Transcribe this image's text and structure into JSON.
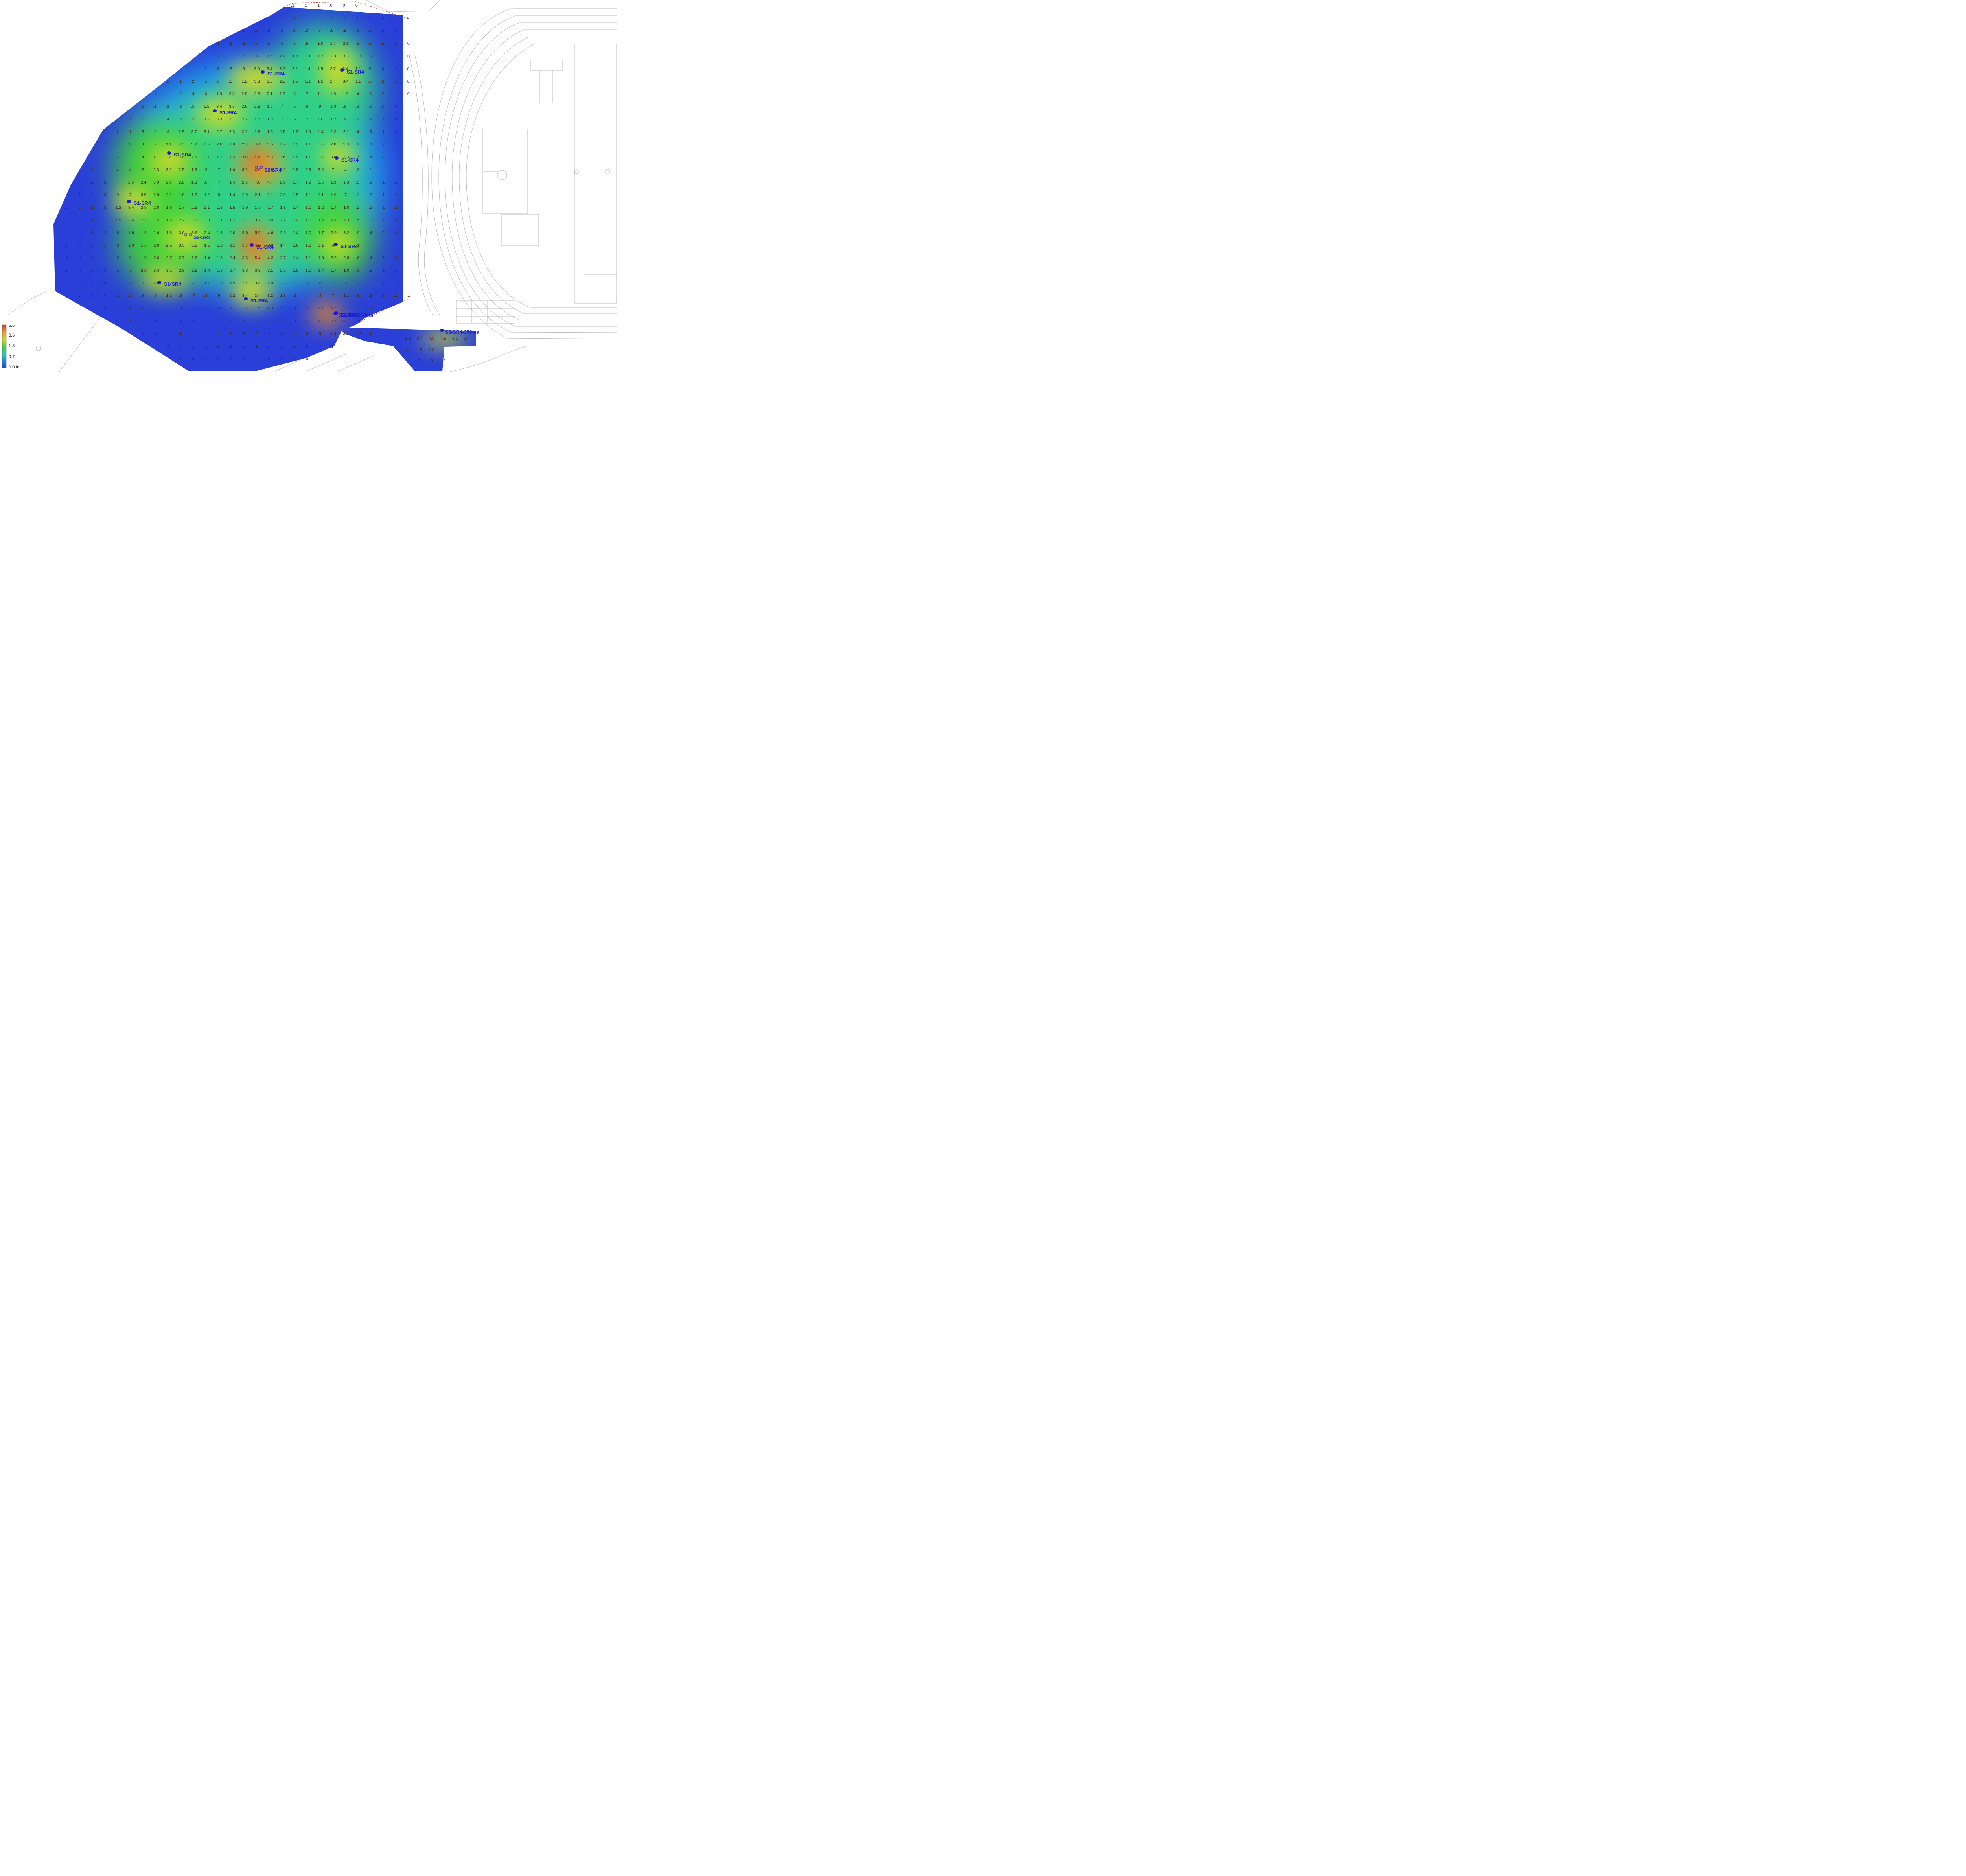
{
  "legend": {
    "ticks": [
      "6.6",
      "3.6",
      "1.8",
      "0.7",
      "0.0 fc"
    ]
  },
  "luminaire_label": "S1-SR4",
  "luminaire_labels": [
    "S1-SR4",
    "S1-SR4",
    "S1-SR4",
    "S1-SR4",
    "S2-SR4",
    "S1-SR4",
    "S1-SR4",
    "S2-SR4",
    "S1-SR4",
    "S1-SR4",
    "S1-SR4",
    "S1-SR4",
    "S1-SR4",
    "S3-SR4-350ma",
    "S3-SR4-350ma"
  ],
  "grid_rows": [
    ".1 .1 .1 .0 .0 .0",
    ".1 .1 .1 .1 .2 .2 .2 .1 .0 .0 .0 .0",
    ".1 .2 .2 .2 .1 .3 .6 .9 .8 .2 .1 .1 .0",
    ".1 .1 .3 .5 .5 .4 .6 .5 1.0 1.7 2.1 .6 .3 .2 .1 .0",
    ".1 .2 .3 .5 .6 1.4 2.4 1.8 1.1 1.3 2.3 3.3 1.7 .6 .2 .1 .0",
    ".1 .2 .3 .3 .5 2.0 3.4 3.2 2.2 1.4 1.5 2.7 3.4 1.1 .5 .3 .1 .0",
    ".1 .1 .2 .5 .6 .5 1.2 3.3 3.0 2.5 1.5 1.1 1.5 2.4 3.4 1.5 .6 .2 .1 .0",
    ".1 .1 .2 .4 .6 1.3 2.3 2.8 2.8 2.1 1.3 .8 .7 1.1 1.8 1.9 .4 .3 .2 .1 .0",
    ".1 .1 .2 .3 .5 1.5 3.4 3.5 2.9 2.3 1.5 .7 .5 .6 .9 1.0 .8 .2 .2 .1 .0",
    ".1 .1 .3 .4 .4 .9 3.2 3.3 3.1 2.2 1.7 1.0 .7 .6 .7 1.0 1.2 .9 .2 .2 .1 .0",
    ".1 .1 .3 .5 .9 1.5 2.7 3.1 2.7 2.3 2.2 1.8 1.6 1.5 1.2 1.0 1.4 2.2 2.1 .4 .3 .1 .0",
    ".1 .1 .2 .4 .9 1.1 3.5 3.2 2.6 2.0 1.9 2.5 3.4 3.5 2.7 1.6 1.1 1.6 2.8 3.3 .9 .4 .2 .1",
    ".1 .2 .3 .4 1.1 3.4 3.6 2.5 1.7 1.2 1.5 3.0 4.6 5.3 3.6 1.8 1.1 1.8 3.0 3.3 .7 .4 .2 .1",
    ".1 .1 .4 .4 .5 2.3 3.2 2.5 1.6 .9 .7 1.4 3.1 4.6 1.8 1.2 1.8 2.8 2.9 .7 .4 .2 .1",
    ".1 .3 .4 1.0 2.4 3.0 2.8 2.0 1.3 .8 .7 1.4 2.6 4.0 4.4 2.9 1.7 1.2 1.5 1.9 1.3 .3 .2 .1 .1",
    ".1 .2 .4 .9 .7 3.5 2.9 2.2 1.8 1.5 1.2 .9 1.4 2.0 2.1 2.1 2.0 1.5 1.1 1.1 1.0 .7 .2 .2 .1 .1",
    ".0 .1 .1 .3 1.2 3.4 2.9 2.0 1.6 1.7 2.2 2.1 1.3 1.5 1.9 1.7 1.7 1.8 1.4 1.0 1.2 1.4 1.0 .2 .2 .1 .1",
    ".0 .1 .1 .2 1.5 2.6 2.2 1.5 1.5 2.2 3.1 3.3 1.1 1.7 2.7 3.2 3.0 2.2 1.4 1.0 1.5 2.4 2.3 .5 .3 .1 .1",
    ".0 .0 .1 .2 .8 1.6 1.6 1.4 1.8 3.0 3.6 2.4 1.3 2.0 3.6 5.5 4.6 2.9 1.4 1.0 1.7 2.9 3.2 .9 .4 .2 .1",
    ".0 .0 .0 .1 .3 1.0 1.6 2.0 2.5 3.5 3.2 1.5 1.3 2.1 3.7 4.2 3.0 1.4 1.0 1.8 3.1 .4 .1 .1",
    ".0 .0 .0 .1 .2 .8 1.9 2.6 2.7 2.7 1.6 1.4 1.5 2.4 3.6 5.4 4.2 2.7 1.4 1.1 1.8 2.9 2.3 .6 .4 .1 .1",
    ".0 .0 .0 .0 .1 .7 2.0 3.4 3.1 2.8 1.9 1.4 1.8 2.7 3.3 3.3 3.1 2.5 1.5 1.0 1.4 1.7 1.0 .3 .2 .1 .0",
    ".0 .0 .0 .0 .1 .2 .7 2.6 3.2 3.3 2.0 1.1 1.5 2.9 3.4 3.4 2.9 2.3 1.3 .7 .6 .7 .5 .2 .2 .1 .0",
    ".0 .0 .0 .1 .2 .4 .9 1.1 .9 .7 .6 .9 2.2 3.4 3.4 3.2 1.8 .8 .4 .4 .7 1.1 .6 .2 .1 .1 .1",
    ".0 .1 .1 .2 .4 .5 .3 .2 .2 .3 .6 1.2 1.5 1.0 .5 .3 .7 2.7 6.2 2.4 .7 .2 .1",
    ".0 .1 .1 .1 .2 .2 .1 .1 .2 .4 .5 .6 .4 .2 .3 .8 2.2 3.2 5.1 2.9",
    ".0 .1 .1 .1 .1 .1 .1 .2 .2 .2 .2 .2 .2 .3 .5 1.0 3.4 1.3 .1",
    ".0 .0 .1 .1 .1 .1 .1 .1 .1 .1 .1 .0 .0 .1 1.2 3.4 4.0 4.5 3.1 .9",
    ".0 .0 .0 .0 .0 .0 .0 .0 .0 .0 .0 .2 .8 1.5 1.8",
    ".2 .3 .3"
  ],
  "colors": {
    "scale": [
      "#2a3fd8",
      "#1a84e8",
      "#24c7c9",
      "#3fd33a",
      "#c9d92a",
      "#e8a32a",
      "#d43a2a"
    ],
    "label": "#1a1ad6",
    "low_value": "#1f1fd0",
    "mid_value": "#3b2a10",
    "high_value": "#8a1010"
  }
}
